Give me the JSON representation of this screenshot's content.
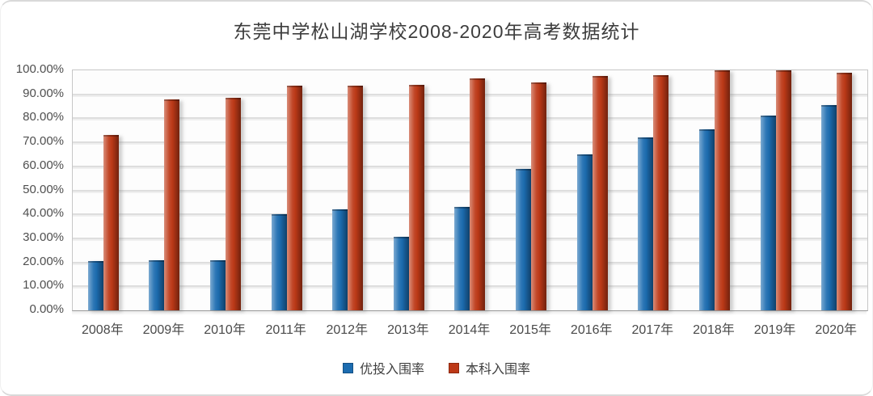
{
  "chart_data": {
    "type": "bar",
    "title": "东莞中学松山湖学校2008-2020年高考数据统计",
    "categories": [
      "2008年",
      "2009年",
      "2010年",
      "2011年",
      "2012年",
      "2013年",
      "2014年",
      "2015年",
      "2016年",
      "2017年",
      "2018年",
      "2019年",
      "2020年"
    ],
    "series": [
      {
        "name": "优投入围率",
        "color": "#1c6cb0",
        "values": [
          20.5,
          21.0,
          21.0,
          40.0,
          42.0,
          30.5,
          43.0,
          59.0,
          65.0,
          72.0,
          75.5,
          81.0,
          85.5
        ]
      },
      {
        "name": "本科入围率",
        "color": "#bd3917",
        "values": [
          73.0,
          88.0,
          88.5,
          93.5,
          93.5,
          94.0,
          96.5,
          95.0,
          97.5,
          98.0,
          100.0,
          100.0,
          99.0
        ]
      }
    ],
    "ylabel": "",
    "xlabel": "",
    "ylim": [
      0,
      100
    ],
    "y_ticks": [
      "100.00%",
      "90.00%",
      "80.00%",
      "70.00%",
      "60.00%",
      "50.00%",
      "40.00%",
      "30.00%",
      "20.00%",
      "10.00%",
      "0.00%"
    ],
    "grid": true,
    "legend_position": "bottom"
  }
}
